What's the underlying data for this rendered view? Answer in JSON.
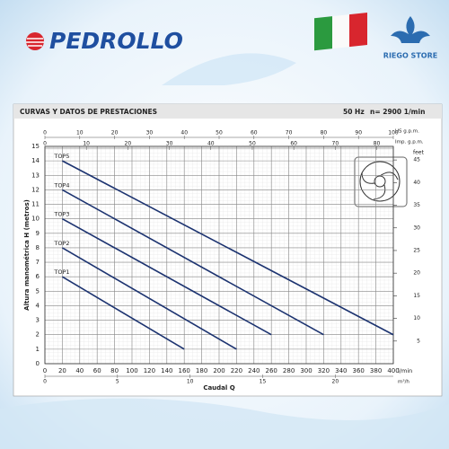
{
  "header": {
    "brand": "PEDROLLO",
    "store": "RIEGO STORE"
  },
  "chart_data": {
    "type": "line",
    "title": "CURVAS Y DATOS DE PRESTACIONES",
    "frequency": "50 Hz",
    "speed": "n= 2900 1/min",
    "y_label": "Altura manométrica  H  (metros)",
    "x_label": "Caudal Q",
    "x_unit": "l/min",
    "xlim": [
      0,
      400
    ],
    "xticks": [
      0,
      20,
      40,
      60,
      80,
      100,
      120,
      140,
      160,
      180,
      200,
      220,
      240,
      260,
      280,
      300,
      320,
      340,
      360,
      380,
      400
    ],
    "ylim": [
      0,
      15
    ],
    "yticks": [
      0,
      1,
      2,
      3,
      4,
      5,
      6,
      7,
      8,
      9,
      10,
      11,
      12,
      13,
      14,
      15
    ],
    "grid": true,
    "top_axes": [
      {
        "unit": "US g.p.m.",
        "xlim": [
          0,
          100
        ],
        "xticks": [
          0,
          10,
          20,
          30,
          40,
          50,
          60,
          70,
          80,
          90,
          100
        ]
      },
      {
        "unit": "Imp. g.p.m.",
        "xlim": [
          0,
          84
        ],
        "xticks": [
          0,
          10,
          20,
          30,
          40,
          50,
          60,
          70,
          80
        ]
      }
    ],
    "bottom_axis2": {
      "unit": "m³/h",
      "xlim": [
        0,
        24
      ],
      "xticks": [
        0,
        5,
        10,
        15,
        20
      ]
    },
    "y2_unit": "feet",
    "y2lim": [
      0,
      48
    ],
    "y2ticks": [
      5,
      10,
      15,
      20,
      25,
      30,
      35,
      40,
      45
    ],
    "series": [
      {
        "name": "TOP1",
        "color": "#1c3370",
        "x": [
          20,
          160
        ],
        "values": [
          6,
          1
        ]
      },
      {
        "name": "TOP2",
        "color": "#1c3370",
        "x": [
          20,
          220
        ],
        "values": [
          8,
          1
        ]
      },
      {
        "name": "TOP3",
        "color": "#1c3370",
        "x": [
          20,
          260
        ],
        "values": [
          10,
          2
        ]
      },
      {
        "name": "TOP4",
        "color": "#1c3370",
        "x": [
          20,
          320
        ],
        "values": [
          12,
          2
        ]
      },
      {
        "name": "TOP5",
        "color": "#1c3370",
        "x": [
          20,
          400
        ],
        "values": [
          14,
          2
        ]
      }
    ]
  }
}
